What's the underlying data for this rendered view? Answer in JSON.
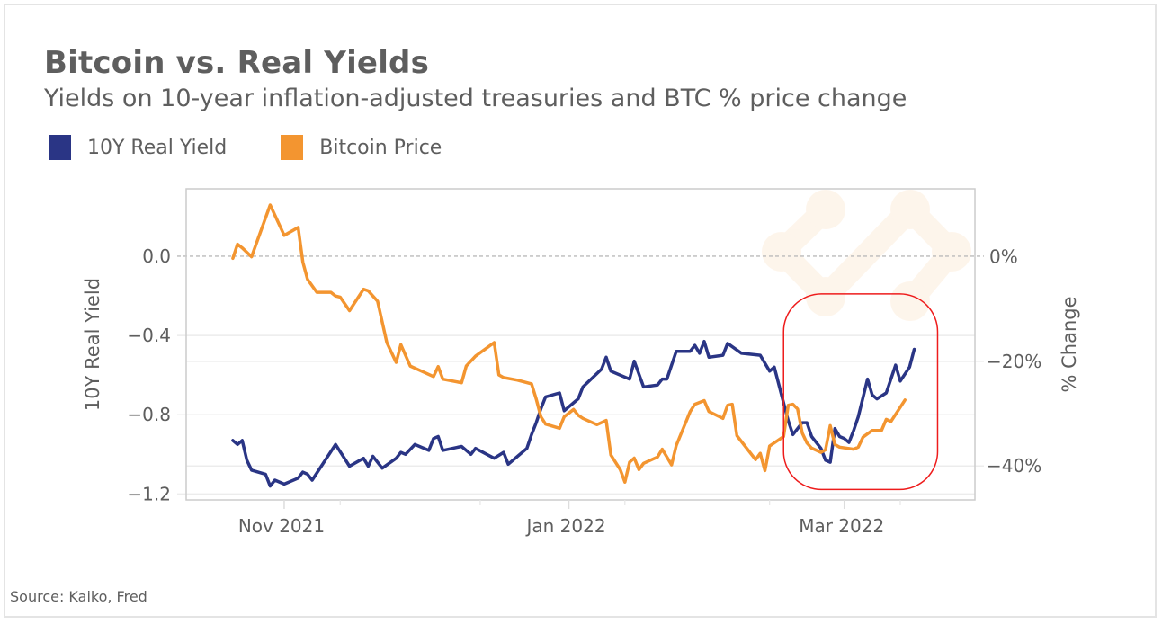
{
  "header": {
    "title": "Bitcoin vs. Real Yields",
    "subtitle": "Yields on 10-year inflation-adjusted treasuries and BTC % price change"
  },
  "footer": {
    "source": "Source: Kaiko, Fred"
  },
  "highlight_color": "#ee1c1c",
  "chart_data": {
    "type": "line",
    "title": "Bitcoin vs. Real Yields",
    "subtitle": "Yields on 10-year inflation-adjusted treasuries and BTC % price change",
    "legend_position": "top-left",
    "grid": true,
    "x_axis": {
      "type": "date",
      "range": [
        "2021-10-11",
        "2022-03-29"
      ],
      "ticks": [
        {
          "date": "2021-11-01",
          "label": "Nov 2021"
        },
        {
          "date": "2022-01-01",
          "label": "Jan 2022"
        },
        {
          "date": "2022-03-01",
          "label": "Mar 2022"
        }
      ],
      "minor_ticks": [
        "2021-11-13",
        "2021-12-13",
        "2022-01-13",
        "2022-02-13",
        "2022-03-13"
      ]
    },
    "y_left": {
      "label": "10Y Real Yield",
      "range": [
        -1.23,
        0.34
      ],
      "ticks": [
        {
          "value": 0.0,
          "label": "0.0"
        },
        {
          "value": -0.4,
          "label": "-0.4"
        },
        {
          "value": -0.8,
          "label": "-0.8"
        },
        {
          "value": -1.2,
          "label": "-1.2"
        }
      ]
    },
    "y_right": {
      "label": "% Change",
      "range": [
        -46.5,
        13
      ],
      "ticks": [
        {
          "value": 0,
          "label": "0%"
        },
        {
          "value": -20,
          "label": "-20%"
        },
        {
          "value": -40,
          "label": "-40%"
        }
      ]
    },
    "annotation": {
      "type": "highlight-box",
      "x_range": [
        "2022-02-16",
        "2022-03-21"
      ],
      "y_right_range": [
        -44.5,
        -7.1
      ]
    },
    "series": [
      {
        "name": "10Y Real Yield",
        "axis": "left",
        "color": "#2a3585",
        "points": [
          [
            "2021-10-21",
            -0.93
          ],
          [
            "2021-10-22",
            -0.95
          ],
          [
            "2021-10-23",
            -0.93
          ],
          [
            "2021-10-24",
            -1.03
          ],
          [
            "2021-10-25",
            -1.08
          ],
          [
            "2021-10-28",
            -1.1
          ],
          [
            "2021-10-29",
            -1.16
          ],
          [
            "2021-10-30",
            -1.13
          ],
          [
            "2021-11-01",
            -1.15
          ],
          [
            "2021-11-04",
            -1.12
          ],
          [
            "2021-11-05",
            -1.09
          ],
          [
            "2021-11-06",
            -1.1
          ],
          [
            "2021-11-07",
            -1.13
          ],
          [
            "2021-11-12",
            -0.95
          ],
          [
            "2021-11-15",
            -1.06
          ],
          [
            "2021-11-18",
            -1.02
          ],
          [
            "2021-11-19",
            -1.06
          ],
          [
            "2021-11-20",
            -1.01
          ],
          [
            "2021-11-22",
            -1.07
          ],
          [
            "2021-11-25",
            -1.02
          ],
          [
            "2021-11-26",
            -0.99
          ],
          [
            "2021-11-27",
            -1.0
          ],
          [
            "2021-11-29",
            -0.95
          ],
          [
            "2021-12-02",
            -0.98
          ],
          [
            "2021-12-03",
            -0.92
          ],
          [
            "2021-12-04",
            -0.91
          ],
          [
            "2021-12-05",
            -0.98
          ],
          [
            "2021-12-09",
            -0.96
          ],
          [
            "2021-12-11",
            -1.0
          ],
          [
            "2021-12-12",
            -0.97
          ],
          [
            "2021-12-16",
            -1.02
          ],
          [
            "2021-12-18",
            -0.99
          ],
          [
            "2021-12-19",
            -1.05
          ],
          [
            "2021-12-23",
            -0.97
          ],
          [
            "2021-12-24",
            -0.9
          ],
          [
            "2021-12-25",
            -0.84
          ],
          [
            "2021-12-26",
            -0.77
          ],
          [
            "2021-12-27",
            -0.71
          ],
          [
            "2021-12-30",
            -0.69
          ],
          [
            "2021-12-31",
            -0.78
          ],
          [
            "2022-01-02",
            -0.74
          ],
          [
            "2022-01-03",
            -0.72
          ],
          [
            "2022-01-04",
            -0.66
          ],
          [
            "2022-01-08",
            -0.57
          ],
          [
            "2022-01-09",
            -0.51
          ],
          [
            "2022-01-10",
            -0.58
          ],
          [
            "2022-01-14",
            -0.62
          ],
          [
            "2022-01-15",
            -0.53
          ],
          [
            "2022-01-17",
            -0.66
          ],
          [
            "2022-01-20",
            -0.65
          ],
          [
            "2022-01-21",
            -0.62
          ],
          [
            "2022-01-22",
            -0.62
          ],
          [
            "2022-01-24",
            -0.48
          ],
          [
            "2022-01-27",
            -0.48
          ],
          [
            "2022-01-28",
            -0.45
          ],
          [
            "2022-01-29",
            -0.49
          ],
          [
            "2022-01-30",
            -0.43
          ],
          [
            "2022-01-31",
            -0.51
          ],
          [
            "2022-02-03",
            -0.5
          ],
          [
            "2022-02-04",
            -0.44
          ],
          [
            "2022-02-07",
            -0.49
          ],
          [
            "2022-02-11",
            -0.5
          ],
          [
            "2022-02-13",
            -0.58
          ],
          [
            "2022-02-14",
            -0.56
          ],
          [
            "2022-02-17",
            -0.83
          ],
          [
            "2022-02-18",
            -0.9
          ],
          [
            "2022-02-20",
            -0.84
          ],
          [
            "2022-02-21",
            -0.84
          ],
          [
            "2022-02-22",
            -0.91
          ],
          [
            "2022-02-24",
            -0.97
          ],
          [
            "2022-02-25",
            -1.03
          ],
          [
            "2022-02-26",
            -1.04
          ],
          [
            "2022-02-27",
            -0.87
          ],
          [
            "2022-02-28",
            -0.91
          ],
          [
            "2022-03-01",
            -0.92
          ],
          [
            "2022-03-02",
            -0.94
          ],
          [
            "2022-03-03",
            -0.88
          ],
          [
            "2022-03-04",
            -0.81
          ],
          [
            "2022-03-06",
            -0.62
          ],
          [
            "2022-03-07",
            -0.7
          ],
          [
            "2022-03-08",
            -0.72
          ],
          [
            "2022-03-10",
            -0.69
          ],
          [
            "2022-03-12",
            -0.55
          ],
          [
            "2022-03-13",
            -0.63
          ],
          [
            "2022-03-15",
            -0.56
          ],
          [
            "2022-03-16",
            -0.47
          ]
        ]
      },
      {
        "name": "Bitcoin Price",
        "axis": "right",
        "color": "#f39530",
        "points": [
          [
            "2021-10-21",
            -0.3
          ],
          [
            "2021-10-22",
            2.4
          ],
          [
            "2021-10-23",
            1.7
          ],
          [
            "2021-10-25",
            0.0
          ],
          [
            "2021-10-29",
            9.9
          ],
          [
            "2021-11-01",
            4.1
          ],
          [
            "2021-11-04",
            5.6
          ],
          [
            "2021-11-05",
            -1.0
          ],
          [
            "2021-11-06",
            -4.3
          ],
          [
            "2021-11-08",
            -6.8
          ],
          [
            "2021-11-11",
            -6.8
          ],
          [
            "2021-11-12",
            -7.5
          ],
          [
            "2021-11-13",
            -7.7
          ],
          [
            "2021-11-15",
            -10.3
          ],
          [
            "2021-11-18",
            -6.2
          ],
          [
            "2021-11-19",
            -6.5
          ],
          [
            "2021-11-21",
            -8.5
          ],
          [
            "2021-11-23",
            -16.4
          ],
          [
            "2021-11-25",
            -20.2
          ],
          [
            "2021-11-26",
            -16.8
          ],
          [
            "2021-11-28",
            -20.9
          ],
          [
            "2021-11-30",
            -21.7
          ],
          [
            "2021-12-03",
            -22.9
          ],
          [
            "2021-12-04",
            -21.0
          ],
          [
            "2021-12-05",
            -23.4
          ],
          [
            "2021-12-09",
            -24.1
          ],
          [
            "2021-12-10",
            -20.9
          ],
          [
            "2021-12-12",
            -19.0
          ],
          [
            "2021-12-16",
            -16.4
          ],
          [
            "2021-12-17",
            -22.6
          ],
          [
            "2021-12-18",
            -23.1
          ],
          [
            "2021-12-21",
            -23.6
          ],
          [
            "2021-12-24",
            -24.3
          ],
          [
            "2021-12-25",
            -27.2
          ],
          [
            "2021-12-26",
            -30.6
          ],
          [
            "2021-12-27",
            -32.0
          ],
          [
            "2021-12-30",
            -32.8
          ],
          [
            "2021-12-31",
            -30.6
          ],
          [
            "2022-01-02",
            -29.2
          ],
          [
            "2022-01-03",
            -30.3
          ],
          [
            "2022-01-04",
            -30.9
          ],
          [
            "2022-01-07",
            -32.1
          ],
          [
            "2022-01-09",
            -31.3
          ],
          [
            "2022-01-10",
            -37.9
          ],
          [
            "2022-01-12",
            -40.7
          ],
          [
            "2022-01-13",
            -43.1
          ],
          [
            "2022-01-14",
            -39.3
          ],
          [
            "2022-01-15",
            -38.5
          ],
          [
            "2022-01-16",
            -40.7
          ],
          [
            "2022-01-17",
            -39.5
          ],
          [
            "2022-01-20",
            -38.3
          ],
          [
            "2022-01-21",
            -36.8
          ],
          [
            "2022-01-23",
            -39.8
          ],
          [
            "2022-01-24",
            -36.1
          ],
          [
            "2022-01-27",
            -29.6
          ],
          [
            "2022-01-28",
            -28.2
          ],
          [
            "2022-01-30",
            -27.5
          ],
          [
            "2022-01-31",
            -29.6
          ],
          [
            "2022-02-03",
            -30.9
          ],
          [
            "2022-02-04",
            -28.4
          ],
          [
            "2022-02-05",
            -28.2
          ],
          [
            "2022-02-06",
            -34.2
          ],
          [
            "2022-02-10",
            -38.8
          ],
          [
            "2022-02-11",
            -37.6
          ],
          [
            "2022-02-12",
            -40.9
          ],
          [
            "2022-02-13",
            -36.2
          ],
          [
            "2022-02-16",
            -34.4
          ],
          [
            "2022-02-17",
            -28.4
          ],
          [
            "2022-02-18",
            -28.2
          ],
          [
            "2022-02-19",
            -29.1
          ],
          [
            "2022-02-20",
            -33.7
          ],
          [
            "2022-02-21",
            -35.6
          ],
          [
            "2022-02-22",
            -36.6
          ],
          [
            "2022-02-24",
            -37.4
          ],
          [
            "2022-02-25",
            -36.9
          ],
          [
            "2022-02-26",
            -32.3
          ],
          [
            "2022-02-27",
            -35.9
          ],
          [
            "2022-02-28",
            -36.4
          ],
          [
            "2022-03-03",
            -36.8
          ],
          [
            "2022-03-04",
            -36.4
          ],
          [
            "2022-03-05",
            -34.5
          ],
          [
            "2022-03-07",
            -33.2
          ],
          [
            "2022-03-09",
            -33.2
          ],
          [
            "2022-03-10",
            -31.1
          ],
          [
            "2022-03-11",
            -31.5
          ],
          [
            "2022-03-14",
            -27.4
          ]
        ]
      }
    ]
  }
}
